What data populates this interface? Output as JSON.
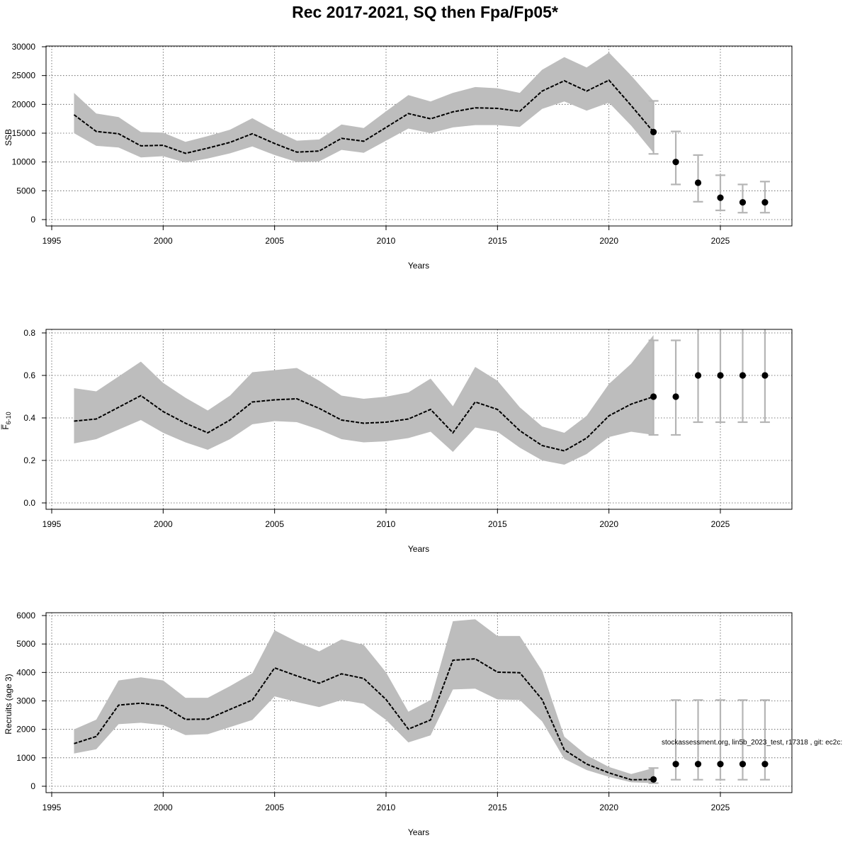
{
  "figure": {
    "title": "Rec 2017-2021, SQ then Fpa/Fp05*",
    "footnote": "stockassessment.org, lin5b_2023_test, r17318 , git: ec2c:"
  },
  "chart_data": [
    {
      "type": "line",
      "id": "ssb",
      "title": "",
      "xlabel": "Years",
      "ylabel": "SSB",
      "xlim": [
        1995,
        2027
      ],
      "ylim": [
        0,
        30000
      ],
      "xticks": [
        1995,
        2000,
        2005,
        2010,
        2015,
        2020,
        2025
      ],
      "yticks": [
        0,
        5000,
        10000,
        15000,
        20000,
        25000,
        30000
      ],
      "grid": true,
      "estimate": {
        "x": [
          1996,
          1997,
          1998,
          1999,
          2000,
          2001,
          2002,
          2003,
          2004,
          2005,
          2006,
          2007,
          2008,
          2009,
          2010,
          2011,
          2012,
          2013,
          2014,
          2015,
          2016,
          2017,
          2018,
          2019,
          2020,
          2021,
          2022
        ],
        "y": [
          18200,
          15300,
          14900,
          12800,
          12900,
          11500,
          12400,
          13400,
          14900,
          13200,
          11700,
          11900,
          14100,
          13600,
          16000,
          18400,
          17500,
          18700,
          19400,
          19300,
          18800,
          22300,
          24100,
          22300,
          24200,
          19800,
          15200
        ],
        "lower": [
          15000,
          12800,
          12500,
          10800,
          11000,
          9900,
          10600,
          11500,
          12700,
          11200,
          10000,
          10100,
          12100,
          11600,
          13700,
          15800,
          15000,
          16000,
          16400,
          16400,
          16100,
          19200,
          20500,
          18900,
          20300,
          16300,
          11600
        ],
        "upper": [
          22000,
          18400,
          17800,
          15200,
          15100,
          13500,
          14500,
          15600,
          17600,
          15500,
          13700,
          13900,
          16500,
          15900,
          18800,
          21600,
          20500,
          22000,
          23000,
          22800,
          22000,
          26000,
          28200,
          26400,
          29000,
          25000,
          20600
        ]
      },
      "forecast": {
        "x": [
          2022,
          2023,
          2024,
          2025,
          2026,
          2027
        ],
        "y": [
          15200,
          10000,
          6400,
          3800,
          3000,
          3000
        ],
        "lower": [
          11400,
          6100,
          3100,
          1600,
          1200,
          1200
        ],
        "upper": [
          20600,
          15300,
          11200,
          7700,
          6100,
          6600
        ]
      }
    },
    {
      "type": "line",
      "id": "fbar",
      "title": "",
      "xlabel": "Years",
      "ylabel": "F̅",
      "ylabel_sub": "6-10",
      "xlim": [
        1995,
        2027
      ],
      "ylim": [
        0,
        0.8
      ],
      "xticks": [
        1995,
        2000,
        2005,
        2010,
        2015,
        2020,
        2025
      ],
      "yticks": [
        "0.0",
        "0.2",
        "0.4",
        "0.6",
        "0.8"
      ],
      "grid": true,
      "estimate": {
        "x": [
          1996,
          1997,
          1998,
          1999,
          2000,
          2001,
          2002,
          2003,
          2004,
          2005,
          2006,
          2007,
          2008,
          2009,
          2010,
          2011,
          2012,
          2013,
          2014,
          2015,
          2016,
          2017,
          2018,
          2019,
          2020,
          2021,
          2022
        ],
        "y": [
          0.385,
          0.395,
          0.45,
          0.505,
          0.43,
          0.375,
          0.33,
          0.39,
          0.475,
          0.485,
          0.49,
          0.445,
          0.39,
          0.375,
          0.38,
          0.395,
          0.44,
          0.33,
          0.475,
          0.44,
          0.34,
          0.27,
          0.245,
          0.305,
          0.41,
          0.465,
          0.5
        ],
        "lower": [
          0.28,
          0.3,
          0.345,
          0.39,
          0.33,
          0.285,
          0.25,
          0.3,
          0.37,
          0.385,
          0.38,
          0.345,
          0.3,
          0.285,
          0.29,
          0.305,
          0.335,
          0.24,
          0.355,
          0.335,
          0.26,
          0.2,
          0.18,
          0.23,
          0.31,
          0.335,
          0.32
        ],
        "upper": [
          0.54,
          0.525,
          0.595,
          0.665,
          0.565,
          0.495,
          0.435,
          0.505,
          0.615,
          0.625,
          0.635,
          0.575,
          0.505,
          0.49,
          0.5,
          0.52,
          0.585,
          0.455,
          0.64,
          0.575,
          0.45,
          0.36,
          0.33,
          0.41,
          0.56,
          0.655,
          0.79
        ]
      },
      "forecast": {
        "x": [
          2022,
          2023,
          2024,
          2025,
          2026,
          2027
        ],
        "y": [
          0.5,
          0.5,
          0.6,
          0.6,
          0.6,
          0.6
        ],
        "lower": [
          0.32,
          0.32,
          0.38,
          0.38,
          0.38,
          0.38
        ],
        "upper": [
          0.765,
          0.765,
          0.825,
          0.825,
          0.825,
          0.825
        ]
      }
    },
    {
      "type": "line",
      "id": "recruits",
      "title": "",
      "xlabel": "Years",
      "ylabel": "Recruits (age 3)",
      "xlim": [
        1995,
        2027
      ],
      "ylim": [
        0,
        6000
      ],
      "xticks": [
        1995,
        2000,
        2005,
        2010,
        2015,
        2020,
        2025
      ],
      "yticks": [
        0,
        1000,
        2000,
        3000,
        4000,
        5000,
        6000
      ],
      "grid": true,
      "estimate": {
        "x": [
          1996,
          1997,
          1998,
          1999,
          2000,
          2001,
          2002,
          2003,
          2004,
          2005,
          2006,
          2007,
          2008,
          2009,
          2010,
          2011,
          2012,
          2013,
          2014,
          2015,
          2016,
          2017,
          2018,
          2019,
          2020,
          2021,
          2022
        ],
        "y": [
          1500,
          1750,
          2850,
          2920,
          2830,
          2350,
          2360,
          2700,
          3030,
          4160,
          3880,
          3620,
          3950,
          3790,
          3050,
          2010,
          2330,
          4430,
          4480,
          4010,
          3990,
          3050,
          1280,
          780,
          470,
          230,
          240
        ],
        "lower": [
          1150,
          1300,
          2180,
          2230,
          2150,
          1800,
          1830,
          2080,
          2330,
          3160,
          2960,
          2780,
          3030,
          2900,
          2330,
          1540,
          1790,
          3400,
          3430,
          3050,
          3030,
          2280,
          960,
          570,
          330,
          140,
          110
        ],
        "upper": [
          2000,
          2340,
          3720,
          3830,
          3720,
          3110,
          3110,
          3520,
          3970,
          5480,
          5080,
          4740,
          5160,
          4970,
          4000,
          2620,
          3030,
          5800,
          5870,
          5280,
          5280,
          4060,
          1740,
          1090,
          680,
          430,
          640
        ]
      },
      "forecast": {
        "x": [
          2022,
          2023,
          2024,
          2025,
          2026,
          2027
        ],
        "y": [
          240,
          780,
          780,
          780,
          780,
          780
        ],
        "lower": [
          110,
          230,
          230,
          230,
          230,
          230
        ],
        "upper": [
          640,
          3030,
          3030,
          3030,
          3030,
          3030
        ]
      }
    }
  ]
}
